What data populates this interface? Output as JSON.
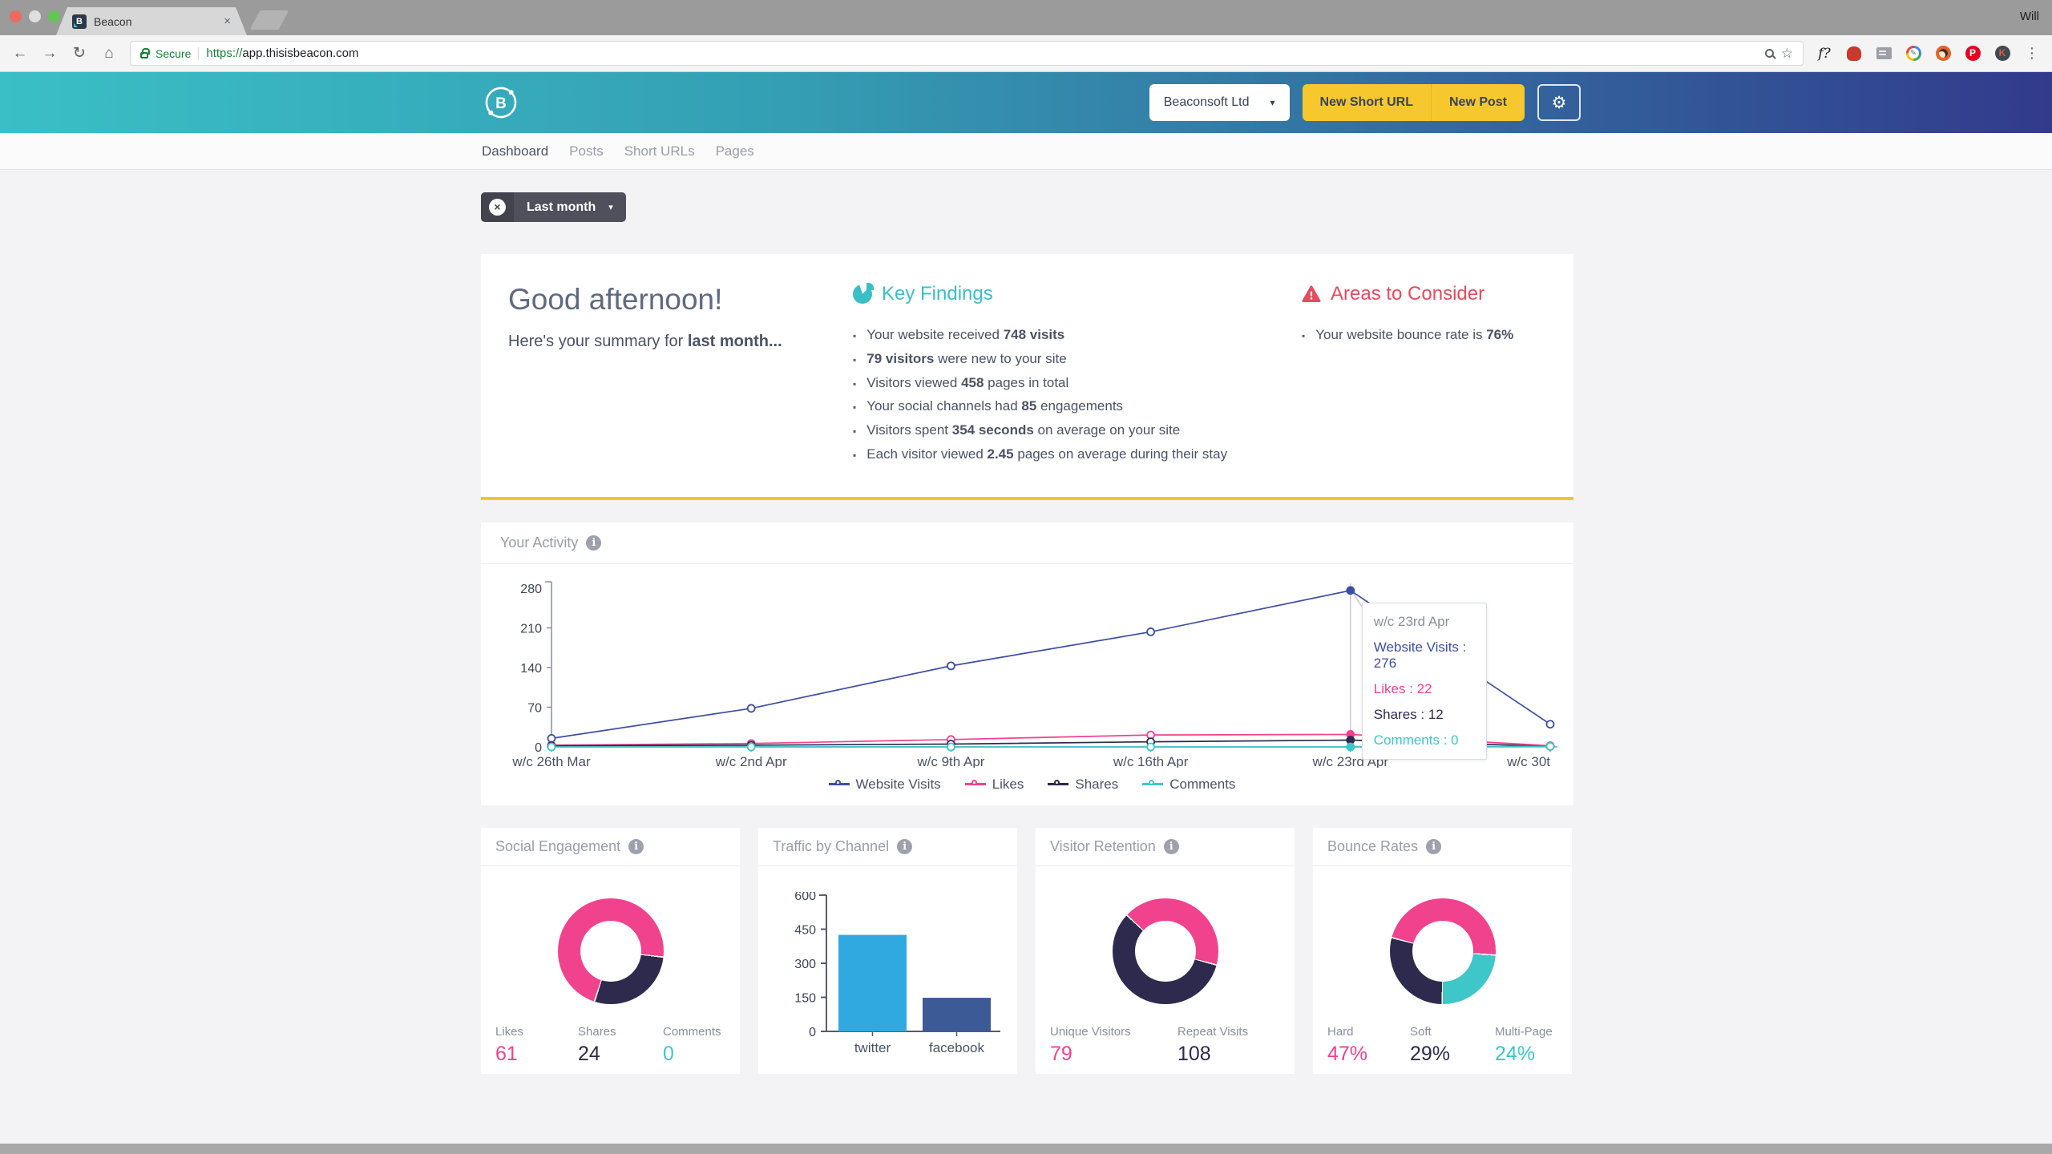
{
  "icons": {
    "gear": "⚙",
    "back": "←",
    "forward": "→",
    "reload": "↻",
    "home": "⌂",
    "menu": "⋮",
    "caret": "▾",
    "close": "×",
    "star": "☆"
  },
  "browser": {
    "user_label": "Will",
    "tab": {
      "title": "Beacon"
    },
    "address": {
      "secure_label": "Secure",
      "protocol": "https://",
      "host": "app.thisisbeacon.com"
    }
  },
  "header": {
    "logo_letter": "B",
    "org_selector_label": "Beaconsoft Ltd",
    "new_short_url_label": "New Short URL",
    "new_post_label": "New Post"
  },
  "nav": {
    "items": [
      {
        "label": "Dashboard",
        "active": true
      },
      {
        "label": "Posts",
        "active": false
      },
      {
        "label": "Short URLs",
        "active": false
      },
      {
        "label": "Pages",
        "active": false
      }
    ]
  },
  "filter_chip": {
    "label": "Last month"
  },
  "summary": {
    "greeting": "Good afternoon!",
    "subtitle": [
      {
        "t": "Here's your summary for "
      },
      {
        "t": "last month...",
        "b": true
      }
    ],
    "key_findings": {
      "title": "Key Findings",
      "items": [
        [
          {
            "t": "Your website received "
          },
          {
            "t": "748 visits",
            "b": true
          }
        ],
        [
          {
            "t": "79 visitors",
            "b": true
          },
          {
            "t": " were new to your site"
          }
        ],
        [
          {
            "t": "Visitors viewed "
          },
          {
            "t": "458",
            "b": true
          },
          {
            "t": " pages in total"
          }
        ],
        [
          {
            "t": "Your social channels had "
          },
          {
            "t": "85",
            "b": true
          },
          {
            "t": " engagements"
          }
        ],
        [
          {
            "t": "Visitors spent "
          },
          {
            "t": "354 seconds",
            "b": true
          },
          {
            "t": " on average on your site"
          }
        ],
        [
          {
            "t": "Each visitor viewed "
          },
          {
            "t": "2.45",
            "b": true
          },
          {
            "t": " pages on average during their stay"
          }
        ]
      ]
    },
    "areas_to_consider": {
      "title": "Areas to Consider",
      "items": [
        [
          {
            "t": "Your website bounce rate is "
          },
          {
            "t": "76%",
            "b": true
          }
        ]
      ]
    }
  },
  "activity": {
    "title": "Your Activity"
  },
  "cards": {
    "social": {
      "title": "Social Engagement",
      "stats": [
        {
          "label": "Likes",
          "value": "61",
          "color": "#F0428D"
        },
        {
          "label": "Shares",
          "value": "24",
          "color": "#2E2A4D"
        },
        {
          "label": "Comments",
          "value": "0",
          "color": "#3EC6C9"
        }
      ]
    },
    "traffic": {
      "title": "Traffic by Channel"
    },
    "retention": {
      "title": "Visitor Retention",
      "stats": [
        {
          "label": "Unique Visitors",
          "value": "79",
          "color": "#F0428D"
        },
        {
          "label": "Repeat Visits",
          "value": "108",
          "color": "#2E2A4D"
        }
      ]
    },
    "bounce": {
      "title": "Bounce Rates",
      "stats": [
        {
          "label": "Hard",
          "value": "47%",
          "color": "#F0428D"
        },
        {
          "label": "Soft",
          "value": "29%",
          "color": "#2E2A4D"
        },
        {
          "label": "Multi-Page",
          "value": "24%",
          "color": "#3EC6C9"
        }
      ]
    }
  },
  "chart_data": [
    {
      "id": "activity",
      "type": "line",
      "title": "Your Activity",
      "categories": [
        "w/c 26th Mar",
        "w/c 2nd Apr",
        "w/c 9th Apr",
        "w/c 16th Apr",
        "w/c 23rd Apr",
        "w/c 30t"
      ],
      "series": [
        {
          "name": "Website Visits",
          "color": "#3D4EA1",
          "values": [
            15,
            68,
            143,
            203,
            276,
            40
          ]
        },
        {
          "name": "Likes",
          "color": "#F0428D",
          "values": [
            3,
            6,
            13,
            21,
            22,
            2
          ]
        },
        {
          "name": "Shares",
          "color": "#2E2A4D",
          "values": [
            2,
            3,
            5,
            9,
            12,
            1
          ]
        },
        {
          "name": "Comments",
          "color": "#3EC6C9",
          "values": [
            0,
            0,
            0,
            0,
            0,
            1
          ]
        }
      ],
      "ylim": [
        0,
        280
      ],
      "yticks": [
        0,
        70,
        140,
        210,
        280
      ],
      "grid": false,
      "legend_position": "bottom",
      "tooltip": {
        "index": 4,
        "title": "w/c 23rd Apr",
        "entries": [
          {
            "label": "Website Visits",
            "value": 276
          },
          {
            "label": "Likes",
            "value": 22
          },
          {
            "label": "Shares",
            "value": 12
          },
          {
            "label": "Comments",
            "value": 0
          }
        ]
      }
    },
    {
      "id": "social_engagement",
      "type": "pie",
      "title": "Social Engagement",
      "labels": [
        "Likes",
        "Shares",
        "Comments"
      ],
      "values": [
        61,
        24,
        0
      ],
      "colors": [
        "#F0428D",
        "#2E2A4D",
        "#3EC6C9"
      ],
      "start_deg": 198
    },
    {
      "id": "traffic_by_channel",
      "type": "bar",
      "title": "Traffic by Channel",
      "categories": [
        "twitter",
        "facebook"
      ],
      "values": [
        425,
        148
      ],
      "colors": [
        "#2FA9DF",
        "#3C5A96"
      ],
      "ylim": [
        0,
        600
      ],
      "yticks": [
        0,
        150,
        300,
        450,
        600
      ]
    },
    {
      "id": "visitor_retention",
      "type": "pie",
      "title": "Visitor Retention",
      "labels": [
        "Unique Visitors",
        "Repeat Visits"
      ],
      "values": [
        79,
        108
      ],
      "colors": [
        "#F0428D",
        "#2E2A4D"
      ],
      "start_deg": -47
    },
    {
      "id": "bounce_rates",
      "type": "pie",
      "title": "Bounce Rates",
      "labels": [
        "Hard",
        "Multi-Page",
        "Soft"
      ],
      "values": [
        47,
        24,
        29
      ],
      "colors": [
        "#F0428D",
        "#3EC6C9",
        "#2E2A4D"
      ],
      "start_deg": -75
    }
  ]
}
